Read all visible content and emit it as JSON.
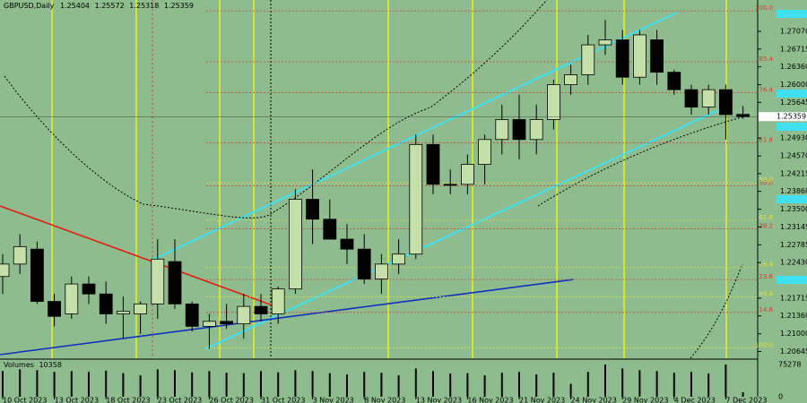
{
  "chart_data": {
    "type": "candlestick",
    "symbol": "GBPUSD,Daily",
    "categories": [
      "10 Oct 2023",
      null,
      null,
      "13 Oct 2023",
      null,
      null,
      "18 Oct 2023",
      null,
      null,
      "23 Oct 2023",
      null,
      null,
      "26 Oct 2023",
      null,
      null,
      "31 Oct 2023",
      null,
      null,
      "3 Nov 2023",
      null,
      null,
      "8 Nov 2023",
      null,
      null,
      "13 Nov 2023",
      null,
      null,
      "16 Nov 2023",
      null,
      null,
      "21 Nov 2023",
      null,
      null,
      "24 Nov 2023",
      null,
      null,
      "29 Nov 2023",
      null,
      null,
      "4 Dec 2023",
      null,
      null,
      "7 Dec 2023",
      null
    ],
    "open": [
      1.2215,
      1.224,
      1.227,
      1.2165,
      1.214,
      1.22,
      1.218,
      1.214,
      1.214,
      1.216,
      1.2245,
      1.216,
      1.2115,
      1.2125,
      1.212,
      1.2155,
      1.214,
      1.219,
      1.237,
      1.233,
      1.229,
      1.227,
      1.221,
      1.224,
      1.226,
      1.248,
      1.24,
      1.24,
      1.244,
      1.249,
      1.253,
      1.249,
      1.253,
      1.26,
      1.262,
      1.268,
      1.269,
      1.2615,
      1.269,
      1.2625,
      1.259,
      1.2555,
      1.259,
      1.25404
    ],
    "high": [
      1.226,
      1.23,
      1.2285,
      1.218,
      1.2215,
      1.2215,
      1.2205,
      1.2175,
      1.2165,
      1.229,
      1.229,
      1.2165,
      1.214,
      1.216,
      1.218,
      1.218,
      1.2195,
      1.239,
      1.243,
      1.237,
      1.232,
      1.23,
      1.226,
      1.229,
      1.25,
      1.25,
      1.243,
      1.246,
      1.25,
      1.256,
      1.258,
      1.256,
      1.261,
      1.264,
      1.27,
      1.273,
      1.271,
      1.271,
      1.271,
      1.263,
      1.26,
      1.26,
      1.26,
      1.25572
    ],
    "low": [
      1.218,
      1.222,
      1.216,
      1.2115,
      1.213,
      1.216,
      1.212,
      1.209,
      1.21,
      1.213,
      1.215,
      1.2105,
      1.207,
      1.211,
      1.209,
      1.2125,
      1.212,
      1.218,
      1.228,
      1.229,
      1.224,
      1.22,
      1.218,
      1.222,
      1.225,
      1.238,
      1.238,
      1.238,
      1.24,
      1.246,
      1.245,
      1.246,
      1.251,
      1.258,
      1.26,
      1.266,
      1.26,
      1.26,
      1.26,
      1.258,
      1.254,
      1.254,
      1.249,
      1.25318
    ],
    "close": [
      1.224,
      1.2275,
      1.2165,
      1.2135,
      1.22,
      1.218,
      1.214,
      1.2145,
      1.216,
      1.225,
      1.216,
      1.2115,
      1.2125,
      1.212,
      1.2155,
      1.214,
      1.219,
      1.237,
      1.233,
      1.229,
      1.227,
      1.221,
      1.224,
      1.226,
      1.248,
      1.24,
      1.2398,
      1.244,
      1.249,
      1.253,
      1.249,
      1.253,
      1.26,
      1.262,
      1.268,
      1.269,
      1.2615,
      1.27,
      1.2625,
      1.259,
      1.2555,
      1.259,
      1.254,
      1.25359
    ],
    "up_color": "#c4dfa8",
    "down_color": "#000000",
    "background": "#8fbc8f",
    "ylim": [
      1.2051,
      1.277
    ],
    "yticks": [
      {
        "value": 1.2707,
        "label": "1.27070"
      },
      {
        "value": 1.26715,
        "label": "1.26715"
      },
      {
        "value": 1.2636,
        "label": "1.26360"
      },
      {
        "value": 1.26,
        "label": "1.26000"
      },
      {
        "value": 1.25645,
        "label": "1.25645"
      },
      {
        "value": 1.2493,
        "label": "1.24930"
      },
      {
        "value": 1.2457,
        "label": "1.24570"
      },
      {
        "value": 1.24215,
        "label": "1.24215"
      },
      {
        "value": 1.2386,
        "label": "1.23860"
      },
      {
        "value": 1.235,
        "label": "1.23500"
      },
      {
        "value": 1.23145,
        "label": "1.23145"
      },
      {
        "value": 1.22785,
        "label": "1.22785"
      },
      {
        "value": 1.2243,
        "label": "1.22430"
      },
      {
        "value": 1.21715,
        "label": "1.21715"
      },
      {
        "value": 1.2136,
        "label": "1.21360"
      },
      {
        "value": 1.21,
        "label": "1.21000"
      },
      {
        "value": 1.20645,
        "label": "1.20645"
      }
    ],
    "fib_red": [
      {
        "label": "100.0",
        "price": 1.2748
      },
      {
        "label": "85.4",
        "price": 1.2646
      },
      {
        "label": "76.4",
        "price": 1.2584
      },
      {
        "label": "61.8",
        "price": 1.2483
      },
      {
        "label": "50.0",
        "price": 1.2397
      },
      {
        "label": "38.2",
        "price": 1.2311
      },
      {
        "label": "23.6",
        "price": 1.2209
      },
      {
        "label": "14.6",
        "price": 1.2143
      }
    ],
    "fib_yellow": [
      {
        "label": "50.0",
        "price": 1.2403
      },
      {
        "label": "61.8",
        "price": 1.2328
      },
      {
        "label": "76.4",
        "price": 1.2233
      },
      {
        "label": "85.4",
        "price": 1.2174
      },
      {
        "label": "100.0",
        "price": 1.2072
      }
    ],
    "volume_label": "Volumes",
    "volumes": [
      60000,
      64000,
      62000,
      58000,
      60000,
      58000,
      61000,
      55000,
      50000,
      64000,
      62000,
      57000,
      60000,
      56000,
      55000,
      60000,
      57000,
      62000,
      60000,
      55000,
      52000,
      58000,
      56000,
      50000,
      66000,
      60000,
      54000,
      55000,
      50000,
      56000,
      58000,
      52000,
      56000,
      30000,
      58000,
      75278,
      66000,
      62000,
      60000,
      56000,
      58000,
      54000,
      75000,
      10358
    ],
    "volume_lim": [
      0,
      75278
    ],
    "volume_ticks": [
      75278,
      0
    ]
  }
}
